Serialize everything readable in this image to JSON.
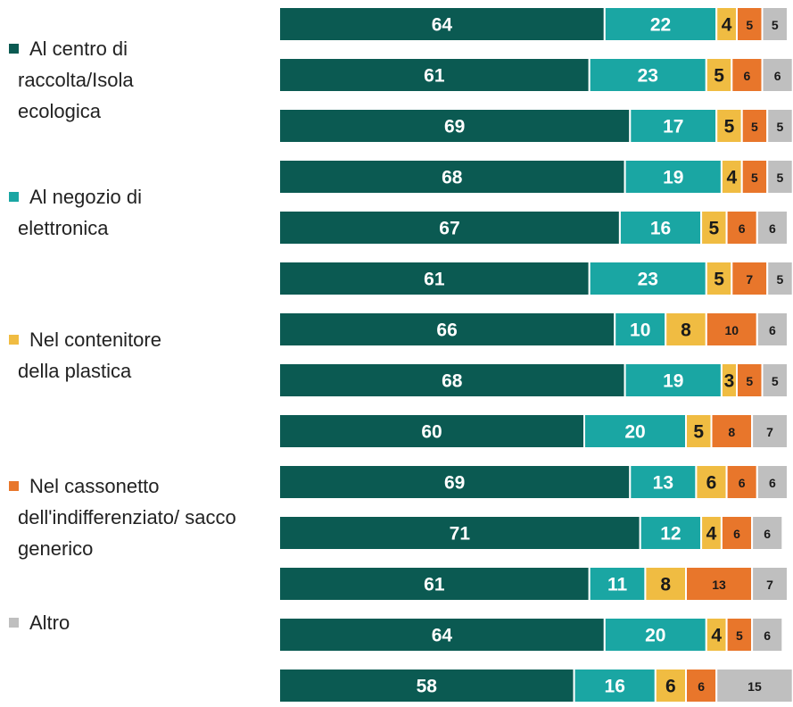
{
  "chart_data": {
    "type": "stacked-bar-horizontal",
    "xlim": [
      0,
      100
    ],
    "series": [
      {
        "name": "Al centro di raccolta/Isola ecologica",
        "color": "#0b5a52",
        "values": [
          64,
          61,
          69,
          68,
          67,
          61,
          66,
          68,
          60,
          69,
          71,
          61,
          64,
          58
        ]
      },
      {
        "name": "Al negozio di elettronica",
        "color": "#1aa6a3",
        "values": [
          22,
          23,
          17,
          19,
          16,
          23,
          10,
          19,
          20,
          13,
          12,
          11,
          20,
          16
        ]
      },
      {
        "name": "Nel contenitore della plastica",
        "color": "#f0bc42",
        "values": [
          4,
          5,
          5,
          4,
          5,
          5,
          8,
          3,
          5,
          6,
          4,
          8,
          4,
          6
        ]
      },
      {
        "name": "Nel cassonetto dell'indifferenziato/ sacco generico",
        "color": "#e8762b",
        "values": [
          5,
          6,
          5,
          5,
          6,
          7,
          10,
          5,
          8,
          6,
          6,
          13,
          5,
          6
        ]
      },
      {
        "name": "Altro",
        "color": "#bfbfbf",
        "values": [
          5,
          6,
          5,
          5,
          6,
          5,
          6,
          5,
          7,
          6,
          6,
          7,
          6,
          15
        ]
      }
    ]
  }
}
